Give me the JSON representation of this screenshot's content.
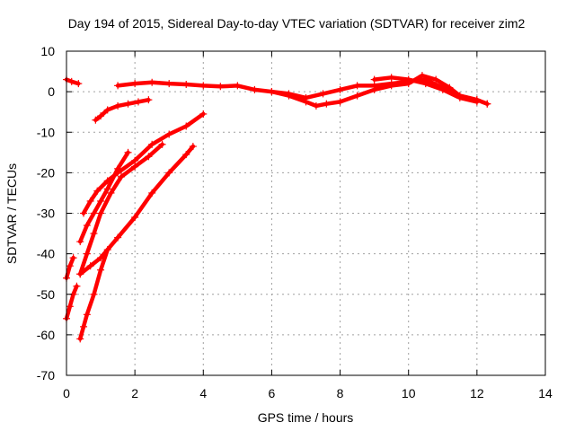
{
  "chart_data": {
    "type": "scatter",
    "title": "Day 194 of 2015, Sidereal Day-to-day VTEC variation (SDTVAR) for receiver zim2",
    "xlabel": "GPS time / hours",
    "ylabel": "SDTVAR / TECUs",
    "xlim": [
      0,
      14
    ],
    "ylim": [
      -70,
      10
    ],
    "xticks": [
      "0",
      "2",
      "4",
      "6",
      "8",
      "10",
      "12",
      "14"
    ],
    "yticks": [
      "10",
      "0",
      "-10",
      "-20",
      "-30",
      "-40",
      "-50",
      "-60",
      "-70"
    ],
    "grid": true,
    "color": "#ff0000",
    "marker": "plus",
    "series": [
      {
        "x": [
          0.0,
          0.15,
          0.35
        ],
        "y": [
          3,
          2.5,
          2
        ]
      },
      {
        "x": [
          1.5,
          2.0,
          2.5,
          3.0,
          3.5,
          4.0,
          4.5,
          5.0,
          5.5,
          6.0,
          6.5,
          7.0,
          7.5,
          8.0,
          8.5,
          9.0,
          9.5,
          10.0,
          10.5,
          11.0,
          11.5,
          12.0,
          12.3
        ],
        "y": [
          1.5,
          2,
          2.3,
          2,
          1.8,
          1.5,
          1.3,
          1.5,
          0.5,
          0,
          -0.5,
          -1.5,
          -0.5,
          0.5,
          1.5,
          1.5,
          2,
          2.5,
          3,
          1,
          -1,
          -2,
          -3
        ]
      },
      {
        "x": [
          6.0,
          6.5,
          7.0,
          7.3,
          7.6,
          8.0,
          8.5,
          9.0,
          9.5,
          10.0,
          10.4,
          10.8,
          11.2,
          11.5,
          12.0,
          12.3
        ],
        "y": [
          0,
          -1,
          -2.5,
          -3.5,
          -3,
          -2.5,
          -1,
          0.5,
          1.5,
          2,
          4,
          3,
          1,
          -1,
          -2,
          -3
        ]
      },
      {
        "x": [
          9.0,
          9.5,
          10.0,
          10.5,
          11.0,
          11.5,
          12.0
        ],
        "y": [
          3,
          3.5,
          3,
          2,
          0.5,
          -1.5,
          -2.5
        ]
      },
      {
        "x": [
          0.85,
          1.0,
          1.2,
          1.5,
          1.8,
          2.1,
          2.4
        ],
        "y": [
          -7,
          -6,
          -4.5,
          -3.5,
          -3,
          -2.5,
          -2
        ]
      },
      {
        "x": [
          0.0,
          0.1,
          0.2
        ],
        "y": [
          -46,
          -43,
          -41
        ]
      },
      {
        "x": [
          0.0,
          0.1,
          0.2,
          0.3
        ],
        "y": [
          -56,
          -53,
          -50,
          -48
        ]
      },
      {
        "x": [
          0.4,
          0.6,
          0.8,
          1.0,
          1.2,
          1.5,
          1.8
        ],
        "y": [
          -37,
          -33,
          -30,
          -27,
          -24,
          -19,
          -15
        ]
      },
      {
        "x": [
          0.5,
          0.7,
          0.9,
          1.2,
          1.5,
          2.0,
          2.5,
          3.0,
          3.5,
          4.0
        ],
        "y": [
          -30,
          -27,
          -24.5,
          -22,
          -20,
          -17,
          -13,
          -10.5,
          -8.5,
          -5.5
        ]
      },
      {
        "x": [
          0.4,
          0.6,
          0.8,
          1.0,
          1.3,
          1.6,
          2.0,
          2.4,
          2.8
        ],
        "y": [
          -45,
          -40,
          -35,
          -30,
          -25,
          -21,
          -18.5,
          -16,
          -13
        ]
      },
      {
        "x": [
          0.4,
          0.7,
          1.0,
          1.5,
          2.0,
          2.5,
          3.0,
          3.5,
          3.7
        ],
        "y": [
          -45,
          -43,
          -41,
          -36,
          -31,
          -25,
          -20,
          -15.5,
          -13.5
        ]
      },
      {
        "x": [
          0.4,
          0.5,
          0.6,
          0.8,
          1.0,
          1.2
        ],
        "y": [
          -61,
          -58,
          -55,
          -50,
          -44,
          -39
        ]
      }
    ]
  }
}
